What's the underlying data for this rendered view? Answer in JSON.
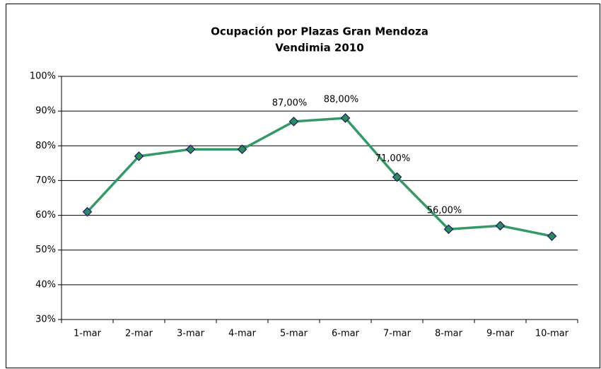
{
  "chart_data": {
    "type": "line",
    "title": [
      "Ocupación por Plazas Gran Mendoza",
      "Vendimia 2010"
    ],
    "categories": [
      "1-mar",
      "2-mar",
      "3-mar",
      "4-mar",
      "5-mar",
      "6-mar",
      "7-mar",
      "8-mar",
      "9-mar",
      "10-mar"
    ],
    "values": [
      61,
      77,
      79,
      79,
      87,
      88,
      71,
      56,
      57,
      54
    ],
    "value_labels": [
      null,
      null,
      null,
      null,
      "87,00%",
      "88,00%",
      "71,00%",
      "56,00%",
      null,
      null
    ],
    "color": "#339966",
    "marker_color": "#2e8b57",
    "marker_edge": "#1a1a6e",
    "ylim": [
      30,
      100
    ],
    "yticks": [
      {
        "value": 30,
        "label": "30%"
      },
      {
        "value": 40,
        "label": "40%"
      },
      {
        "value": 50,
        "label": "50%"
      },
      {
        "value": 60,
        "label": "60%"
      },
      {
        "value": 70,
        "label": "70%"
      },
      {
        "value": 80,
        "label": "80%"
      },
      {
        "value": 90,
        "label": "90%"
      },
      {
        "value": 100,
        "label": "100%"
      }
    ],
    "grid": true
  }
}
